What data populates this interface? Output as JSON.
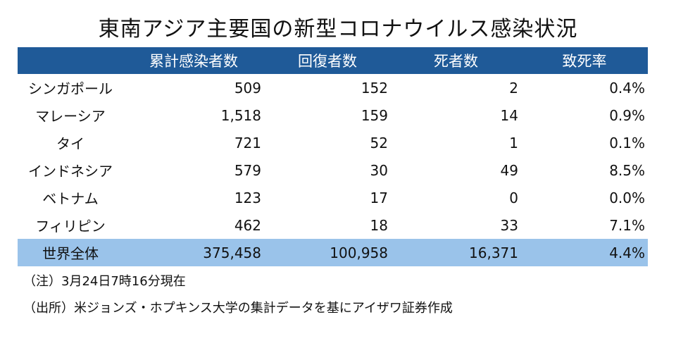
{
  "title": "東南アジア主要国の新型コロナウイルス感染状況",
  "table": {
    "headers": [
      "",
      "累計感染者数",
      "回復者数",
      "死者数",
      "致死率"
    ],
    "rows": [
      {
        "country": "シンガポール",
        "cases": "509",
        "recovered": "152",
        "deaths": "2",
        "rate": "0.4%"
      },
      {
        "country": "マレーシア",
        "cases": "1,518",
        "recovered": "159",
        "deaths": "14",
        "rate": "0.9%"
      },
      {
        "country": "タイ",
        "cases": "721",
        "recovered": "52",
        "deaths": "1",
        "rate": "0.1%"
      },
      {
        "country": "インドネシア",
        "cases": "579",
        "recovered": "30",
        "deaths": "49",
        "rate": "8.5%"
      },
      {
        "country": "ベトナム",
        "cases": "123",
        "recovered": "17",
        "deaths": "0",
        "rate": "0.0%"
      },
      {
        "country": "フィリピン",
        "cases": "462",
        "recovered": "18",
        "deaths": "33",
        "rate": "7.1%"
      }
    ],
    "total": {
      "country": "世界全体",
      "cases": "375,458",
      "recovered": "100,958",
      "deaths": "16,371",
      "rate": "4.4%"
    }
  },
  "notes": {
    "note": "（注）3月24日7時16分現在",
    "source": "（出所）米ジョンズ・ホプキンス大学の集計データを基にアイザワ証券作成"
  },
  "colors": {
    "header_bg": "#1f5a98",
    "total_bg": "#9ac3ea"
  }
}
